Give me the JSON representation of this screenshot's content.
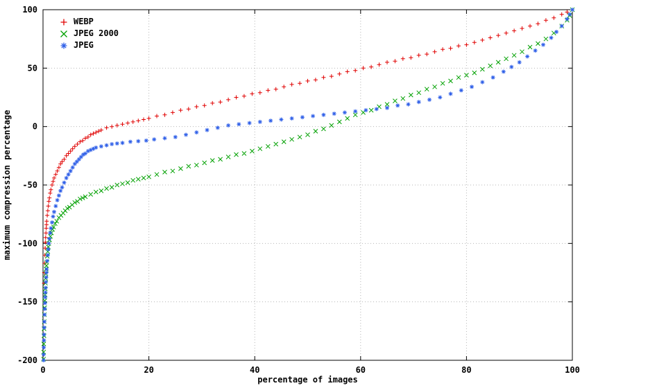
{
  "chart_data": {
    "type": "scatter",
    "title": "",
    "xlabel": "percentage of images",
    "ylabel": "maximum compression percentage",
    "xlim": [
      0,
      100
    ],
    "ylim": [
      -200,
      100
    ],
    "x_ticks": [
      0,
      20,
      40,
      60,
      80,
      100
    ],
    "y_ticks": [
      -200,
      -150,
      -100,
      -50,
      0,
      50,
      100
    ],
    "grid": true,
    "grid_color": "#b5b5b5",
    "legend_position": "top-left",
    "series": [
      {
        "id": "webp",
        "name": "WEBP",
        "marker": "plus",
        "color": "#e00000",
        "points": [
          [
            0.2,
            -134
          ],
          [
            0.25,
            -125
          ],
          [
            0.3,
            -117
          ],
          [
            0.35,
            -110
          ],
          [
            0.4,
            -104
          ],
          [
            0.45,
            -99
          ],
          [
            0.5,
            -95
          ],
          [
            0.55,
            -91
          ],
          [
            0.6,
            -87
          ],
          [
            0.65,
            -84
          ],
          [
            0.7,
            -81
          ],
          [
            0.8,
            -76
          ],
          [
            0.9,
            -72
          ],
          [
            1,
            -68
          ],
          [
            1.1,
            -64
          ],
          [
            1.2,
            -61
          ],
          [
            1.35,
            -57
          ],
          [
            1.5,
            -54
          ],
          [
            1.7,
            -50
          ],
          [
            1.9,
            -47
          ],
          [
            2.1,
            -44
          ],
          [
            2.4,
            -41
          ],
          [
            2.7,
            -38
          ],
          [
            3,
            -35
          ],
          [
            3.3,
            -32
          ],
          [
            3.6,
            -30
          ],
          [
            4,
            -28
          ],
          [
            4.4,
            -25
          ],
          [
            4.8,
            -23
          ],
          [
            5.2,
            -21
          ],
          [
            5.6,
            -19
          ],
          [
            6,
            -17
          ],
          [
            6.5,
            -15
          ],
          [
            7,
            -13
          ],
          [
            7.5,
            -12
          ],
          [
            8,
            -10
          ],
          [
            8.5,
            -9
          ],
          [
            9,
            -7
          ],
          [
            9.5,
            -6
          ],
          [
            10,
            -5
          ],
          [
            10.5,
            -4
          ],
          [
            11,
            -3
          ],
          [
            12,
            -1
          ],
          [
            13,
            0
          ],
          [
            14,
            1
          ],
          [
            15,
            2
          ],
          [
            16,
            3
          ],
          [
            17,
            4
          ],
          [
            18,
            5
          ],
          [
            19,
            6
          ],
          [
            20,
            7
          ],
          [
            21.5,
            9
          ],
          [
            23,
            10
          ],
          [
            24.5,
            12
          ],
          [
            26,
            14
          ],
          [
            27.5,
            15
          ],
          [
            29,
            17
          ],
          [
            30.5,
            18
          ],
          [
            32,
            20
          ],
          [
            33.5,
            21
          ],
          [
            35,
            23
          ],
          [
            36.5,
            25
          ],
          [
            38,
            26
          ],
          [
            39.5,
            28
          ],
          [
            41,
            29
          ],
          [
            42.5,
            31
          ],
          [
            44,
            32
          ],
          [
            45.5,
            34
          ],
          [
            47,
            36
          ],
          [
            48.5,
            37
          ],
          [
            50,
            39
          ],
          [
            51.5,
            40
          ],
          [
            53,
            42
          ],
          [
            54.5,
            43
          ],
          [
            56,
            45
          ],
          [
            57.5,
            47
          ],
          [
            59,
            48
          ],
          [
            60.5,
            50
          ],
          [
            62,
            51
          ],
          [
            63.5,
            53
          ],
          [
            65,
            55
          ],
          [
            66.5,
            56
          ],
          [
            68,
            58
          ],
          [
            69.5,
            59
          ],
          [
            71,
            61
          ],
          [
            72.5,
            62
          ],
          [
            74,
            64
          ],
          [
            75.5,
            66
          ],
          [
            77,
            67
          ],
          [
            78.5,
            69
          ],
          [
            80,
            70
          ],
          [
            81.5,
            72
          ],
          [
            83,
            74
          ],
          [
            84.5,
            76
          ],
          [
            86,
            78
          ],
          [
            87.5,
            80
          ],
          [
            89,
            82
          ],
          [
            90.5,
            84
          ],
          [
            92,
            86
          ],
          [
            93.5,
            88
          ],
          [
            95,
            91
          ],
          [
            96.5,
            93
          ],
          [
            98,
            96
          ],
          [
            99,
            98
          ],
          [
            100,
            100
          ]
        ]
      },
      {
        "id": "jpeg2000",
        "name": "JPEG 2000",
        "marker": "cross",
        "color": "#00a000",
        "points": [
          [
            0.1,
            -199
          ],
          [
            0.12,
            -193
          ],
          [
            0.15,
            -186
          ],
          [
            0.18,
            -179
          ],
          [
            0.2,
            -173
          ],
          [
            0.23,
            -167
          ],
          [
            0.26,
            -161
          ],
          [
            0.3,
            -155
          ],
          [
            0.34,
            -149
          ],
          [
            0.38,
            -144
          ],
          [
            0.42,
            -139
          ],
          [
            0.46,
            -134
          ],
          [
            0.5,
            -130
          ],
          [
            0.55,
            -126
          ],
          [
            0.6,
            -122
          ],
          [
            0.65,
            -119
          ],
          [
            0.7,
            -116
          ],
          [
            0.8,
            -111
          ],
          [
            0.9,
            -107
          ],
          [
            1,
            -103
          ],
          [
            1.1,
            -100
          ],
          [
            1.25,
            -97
          ],
          [
            1.4,
            -94
          ],
          [
            1.6,
            -91
          ],
          [
            1.8,
            -88
          ],
          [
            2,
            -86
          ],
          [
            2.3,
            -83
          ],
          [
            2.6,
            -81
          ],
          [
            3,
            -78
          ],
          [
            3.4,
            -76
          ],
          [
            3.8,
            -74
          ],
          [
            4.2,
            -72
          ],
          [
            4.6,
            -70
          ],
          [
            5,
            -69
          ],
          [
            5.5,
            -67
          ],
          [
            6,
            -65
          ],
          [
            6.5,
            -64
          ],
          [
            7,
            -62
          ],
          [
            7.5,
            -61
          ],
          [
            8,
            -60
          ],
          [
            9,
            -58
          ],
          [
            10,
            -56
          ],
          [
            11,
            -55
          ],
          [
            12,
            -53
          ],
          [
            13,
            -52
          ],
          [
            14,
            -50
          ],
          [
            15,
            -49
          ],
          [
            16,
            -48
          ],
          [
            17,
            -46
          ],
          [
            18,
            -45
          ],
          [
            19,
            -44
          ],
          [
            20,
            -43
          ],
          [
            21.5,
            -41
          ],
          [
            23,
            -39
          ],
          [
            24.5,
            -38
          ],
          [
            26,
            -36
          ],
          [
            27.5,
            -34
          ],
          [
            29,
            -33
          ],
          [
            30.5,
            -31
          ],
          [
            32,
            -29
          ],
          [
            33.5,
            -28
          ],
          [
            35,
            -26
          ],
          [
            36.5,
            -24
          ],
          [
            38,
            -23
          ],
          [
            39.5,
            -21
          ],
          [
            41,
            -19
          ],
          [
            42.5,
            -17
          ],
          [
            44,
            -15
          ],
          [
            45.5,
            -13
          ],
          [
            47,
            -11
          ],
          [
            48.5,
            -9
          ],
          [
            50,
            -7
          ],
          [
            51.5,
            -4
          ],
          [
            53,
            -2
          ],
          [
            54.5,
            1
          ],
          [
            56,
            4
          ],
          [
            57.5,
            7
          ],
          [
            59,
            10
          ],
          [
            60.5,
            12
          ],
          [
            62,
            14
          ],
          [
            63.5,
            17
          ],
          [
            65,
            19
          ],
          [
            66.5,
            22
          ],
          [
            68,
            24
          ],
          [
            69.5,
            27
          ],
          [
            71,
            29
          ],
          [
            72.5,
            32
          ],
          [
            74,
            34
          ],
          [
            75.5,
            37
          ],
          [
            77,
            39
          ],
          [
            78.5,
            42
          ],
          [
            80,
            44
          ],
          [
            81.5,
            46
          ],
          [
            83,
            49
          ],
          [
            84.5,
            52
          ],
          [
            86,
            55
          ],
          [
            87.5,
            58
          ],
          [
            89,
            61
          ],
          [
            90.5,
            64
          ],
          [
            92,
            68
          ],
          [
            93.5,
            71
          ],
          [
            95,
            75
          ],
          [
            96.5,
            80
          ],
          [
            98,
            86
          ],
          [
            99,
            91
          ],
          [
            99.5,
            95
          ],
          [
            100,
            100
          ]
        ]
      },
      {
        "id": "jpeg",
        "name": "JPEG",
        "marker": "asterisk",
        "color": "#3060e8",
        "points": [
          [
            0.1,
            -200
          ],
          [
            0.12,
            -195
          ],
          [
            0.15,
            -189
          ],
          [
            0.18,
            -183
          ],
          [
            0.2,
            -178
          ],
          [
            0.23,
            -172
          ],
          [
            0.26,
            -167
          ],
          [
            0.3,
            -161
          ],
          [
            0.34,
            -156
          ],
          [
            0.38,
            -151
          ],
          [
            0.42,
            -146
          ],
          [
            0.46,
            -142
          ],
          [
            0.5,
            -138
          ],
          [
            0.55,
            -133
          ],
          [
            0.6,
            -129
          ],
          [
            0.65,
            -125
          ],
          [
            0.7,
            -122
          ],
          [
            0.8,
            -115
          ],
          [
            0.9,
            -110
          ],
          [
            1,
            -105
          ],
          [
            1.1,
            -100
          ],
          [
            1.2,
            -96
          ],
          [
            1.35,
            -91
          ],
          [
            1.5,
            -87
          ],
          [
            1.7,
            -82
          ],
          [
            1.9,
            -77
          ],
          [
            2.1,
            -73
          ],
          [
            2.4,
            -68
          ],
          [
            2.7,
            -63
          ],
          [
            3,
            -59
          ],
          [
            3.3,
            -55
          ],
          [
            3.6,
            -52
          ],
          [
            4,
            -48
          ],
          [
            4.4,
            -44
          ],
          [
            4.8,
            -41
          ],
          [
            5.2,
            -38
          ],
          [
            5.6,
            -35
          ],
          [
            6,
            -32
          ],
          [
            6.4,
            -30
          ],
          [
            6.8,
            -28
          ],
          [
            7.2,
            -26
          ],
          [
            7.6,
            -24
          ],
          [
            8,
            -23
          ],
          [
            8.5,
            -21
          ],
          [
            9,
            -20
          ],
          [
            9.5,
            -19
          ],
          [
            10,
            -18
          ],
          [
            11,
            -17
          ],
          [
            12,
            -16
          ],
          [
            13,
            -15
          ],
          [
            14,
            -14.5
          ],
          [
            15,
            -14
          ],
          [
            16.5,
            -13
          ],
          [
            18,
            -12.5
          ],
          [
            19.5,
            -12
          ],
          [
            21,
            -11
          ],
          [
            23,
            -10
          ],
          [
            25,
            -9
          ],
          [
            27,
            -7
          ],
          [
            29,
            -5
          ],
          [
            31,
            -3
          ],
          [
            33,
            -1
          ],
          [
            35,
            1
          ],
          [
            37,
            2
          ],
          [
            39,
            3
          ],
          [
            41,
            4
          ],
          [
            43,
            5
          ],
          [
            45,
            6
          ],
          [
            47,
            7
          ],
          [
            49,
            8
          ],
          [
            51,
            9
          ],
          [
            53,
            10
          ],
          [
            55,
            11
          ],
          [
            57,
            12
          ],
          [
            59,
            13
          ],
          [
            61,
            14
          ],
          [
            63,
            15
          ],
          [
            65,
            16
          ],
          [
            67,
            18
          ],
          [
            69,
            19
          ],
          [
            71,
            21
          ],
          [
            73,
            23
          ],
          [
            75,
            25
          ],
          [
            77,
            28
          ],
          [
            79,
            31
          ],
          [
            81,
            34
          ],
          [
            83,
            38
          ],
          [
            85,
            42
          ],
          [
            87,
            47
          ],
          [
            88.5,
            51
          ],
          [
            90,
            55
          ],
          [
            91.5,
            60
          ],
          [
            93,
            65
          ],
          [
            94.5,
            70
          ],
          [
            96,
            76
          ],
          [
            97,
            81
          ],
          [
            98,
            86
          ],
          [
            99,
            92
          ],
          [
            99.5,
            96
          ],
          [
            100,
            100
          ]
        ]
      }
    ]
  }
}
